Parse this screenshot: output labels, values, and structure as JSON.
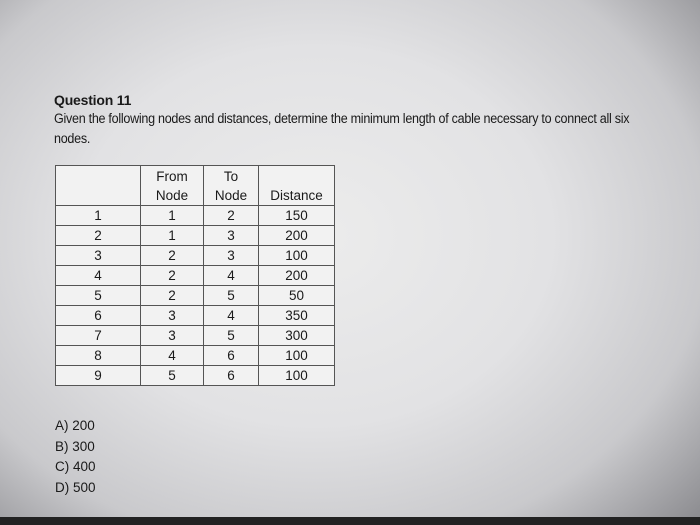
{
  "question": {
    "title": "Question 11",
    "text": "Given the following nodes and distances, determine the minimum length of cable necessary to connect all six nodes."
  },
  "table": {
    "headers": [
      "",
      "From\nNode",
      "To\nNode",
      "Distance"
    ],
    "rows": [
      [
        "1",
        "1",
        "2",
        "150"
      ],
      [
        "2",
        "1",
        "3",
        "200"
      ],
      [
        "3",
        "2",
        "3",
        "100"
      ],
      [
        "4",
        "2",
        "4",
        "200"
      ],
      [
        "5",
        "2",
        "5",
        "50"
      ],
      [
        "6",
        "3",
        "4",
        "350"
      ],
      [
        "7",
        "3",
        "5",
        "300"
      ],
      [
        "8",
        "4",
        "6",
        "100"
      ],
      [
        "9",
        "5",
        "6",
        "100"
      ]
    ]
  },
  "answers": [
    "A) 200",
    "B) 300",
    "C) 400",
    "D) 500"
  ]
}
